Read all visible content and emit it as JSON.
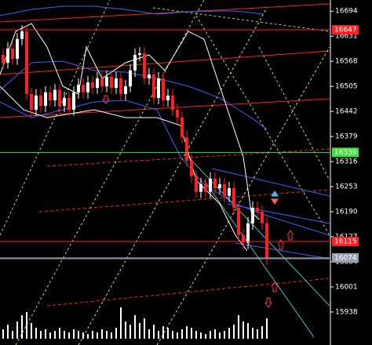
{
  "chart_data": {
    "type": "candlestick",
    "ylim": [
      15855,
      16722
    ],
    "yticks": [
      16694,
      16631,
      16568,
      16505,
      16442,
      16379,
      16316,
      16253,
      16190,
      16127,
      16064,
      16001,
      15938
    ],
    "up_color": "#ffffff",
    "down_color": "#ff2020",
    "open": [
      16584,
      16564,
      16600,
      16574,
      16624,
      16643,
      16486,
      16446,
      16482,
      16456,
      16490,
      16470,
      16496,
      16456,
      16476,
      16446,
      16490,
      16509,
      16490,
      16515,
      16501,
      16525,
      16505,
      16529,
      16501,
      16525,
      16486,
      16505,
      16545,
      16584,
      16588,
      16525,
      16535,
      16476,
      16525,
      16470,
      16482,
      16446,
      16427,
      16377,
      16318,
      16279,
      16240,
      16259,
      16240,
      16273,
      16249,
      16259,
      16230,
      16249,
      16200,
      16131,
      16112,
      16161,
      16200,
      16190,
      16161
    ],
    "high": [
      16600,
      16616,
      16616,
      16639,
      16659,
      16659,
      16501,
      16498,
      16498,
      16505,
      16505,
      16511,
      16511,
      16492,
      16492,
      16505,
      16525,
      16525,
      16531,
      16531,
      16541,
      16541,
      16545,
      16545,
      16541,
      16541,
      16521,
      16561,
      16600,
      16604,
      16604,
      16551,
      16551,
      16541,
      16541,
      16498,
      16498,
      16462,
      16442,
      16393,
      16334,
      16295,
      16275,
      16275,
      16289,
      16289,
      16275,
      16275,
      16265,
      16265,
      16216,
      16147,
      16177,
      16216,
      16216,
      16206,
      16177
    ],
    "low": [
      16549,
      16549,
      16559,
      16559,
      16608,
      16470,
      16431,
      16431,
      16440,
      16440,
      16454,
      16454,
      16440,
      16440,
      16431,
      16431,
      16474,
      16474,
      16474,
      16486,
      16486,
      16490,
      16490,
      16486,
      16486,
      16470,
      16470,
      16490,
      16529,
      16568,
      16509,
      16509,
      16460,
      16460,
      16454,
      16454,
      16431,
      16411,
      16362,
      16303,
      16263,
      16224,
      16224,
      16224,
      16224,
      16234,
      16234,
      16214,
      16214,
      16184,
      16116,
      16096,
      16096,
      16145,
      16175,
      16145,
      16056
    ],
    "close": [
      16564,
      16600,
      16574,
      16624,
      16643,
      16486,
      16446,
      16482,
      16456,
      16490,
      16470,
      16496,
      16456,
      16476,
      16446,
      16490,
      16509,
      16490,
      16515,
      16501,
      16525,
      16505,
      16529,
      16501,
      16525,
      16486,
      16505,
      16545,
      16584,
      16588,
      16525,
      16535,
      16476,
      16525,
      16470,
      16482,
      16446,
      16427,
      16377,
      16318,
      16279,
      16240,
      16259,
      16240,
      16273,
      16249,
      16259,
      16230,
      16249,
      16200,
      16131,
      16112,
      16161,
      16200,
      16190,
      16161,
      16072
    ],
    "volume": [
      12,
      18,
      10,
      22,
      30,
      34,
      20,
      14,
      10,
      12,
      8,
      10,
      14,
      10,
      8,
      12,
      10,
      8,
      6,
      10,
      8,
      12,
      10,
      8,
      14,
      40,
      22,
      18,
      30,
      20,
      26,
      12,
      18,
      10,
      16,
      14,
      10,
      8,
      12,
      16,
      14,
      10,
      8,
      6,
      10,
      12,
      8,
      10,
      14,
      18,
      30,
      22,
      20,
      14,
      12,
      16,
      26
    ],
    "price_lines": [
      {
        "value": 16647,
        "color": "#ff2020"
      },
      {
        "value": 16339,
        "color": "#40e040"
      },
      {
        "value": 16115,
        "color": "#ff2020"
      },
      {
        "value": 16074,
        "color": "#9aa0b0"
      }
    ]
  }
}
